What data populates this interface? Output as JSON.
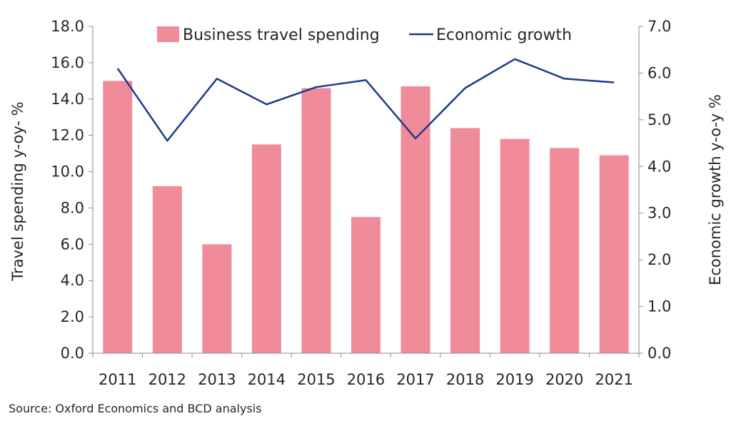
{
  "chart_data": {
    "type": "bar",
    "categories": [
      "2011",
      "2012",
      "2013",
      "2014",
      "2015",
      "2016",
      "2017",
      "2018",
      "2019",
      "2020",
      "2021"
    ],
    "series": [
      {
        "name": "Business travel spending",
        "type": "bar",
        "axis": "left",
        "color": "#F08C9A",
        "values": [
          15.0,
          9.2,
          6.0,
          11.5,
          14.6,
          7.5,
          14.7,
          12.4,
          11.8,
          11.3,
          10.9
        ]
      },
      {
        "name": "Economic growth",
        "type": "line",
        "axis": "right",
        "color": "#1F3A8A",
        "values": [
          6.1,
          4.55,
          5.88,
          5.33,
          5.7,
          5.85,
          4.6,
          5.68,
          6.3,
          5.88,
          5.8
        ]
      }
    ],
    "ylabel": "Travel spending y-oy- %",
    "ylabel_right": "Economic growth y-o-y %",
    "ylim": [
      0,
      18
    ],
    "ylim_right": [
      0,
      7
    ],
    "yticks": [
      "0.0",
      "2.0",
      "4.0",
      "6.0",
      "8.0",
      "10.0",
      "12.0",
      "14.0",
      "16.0",
      "18.0"
    ],
    "yticks_right": [
      "0.0",
      "1.0",
      "2.0",
      "3.0",
      "4.0",
      "5.0",
      "6.0",
      "7.0"
    ],
    "legend": "top",
    "grid": false
  },
  "source": "Source: Oxford Economics and BCD analysis"
}
